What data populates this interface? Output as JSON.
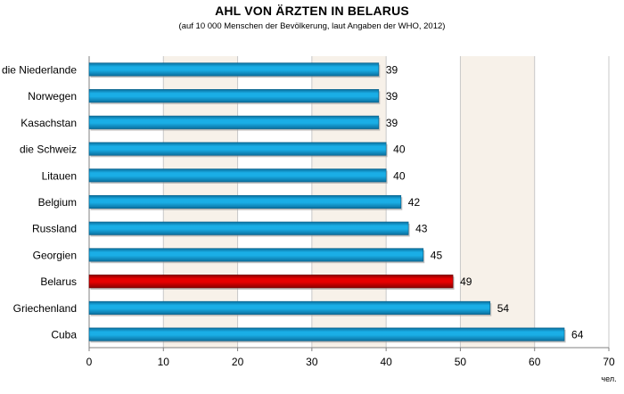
{
  "chart_data": {
    "type": "bar",
    "orientation": "horizontal",
    "title": "AHL VON ÄRZTEN IN BELARUS",
    "subtitle": "(auf 10 000 Menschen der Bevölkerung, laut Angaben der WHO, 2012)",
    "categories": [
      "die Niederlande",
      "Norwegen",
      "Kasachstan",
      "die Schweiz",
      "Litauen",
      "Belgium",
      "Russland",
      "Georgien",
      "Belarus",
      "Griechenland",
      "Cuba"
    ],
    "values": [
      39,
      39,
      39,
      40,
      40,
      42,
      43,
      45,
      49,
      54,
      64
    ],
    "highlight": "Belarus",
    "xlim": [
      0,
      70
    ],
    "xticks": [
      0,
      10,
      20,
      30,
      40,
      50,
      60,
      70
    ],
    "xlabel": "",
    "unit_label": "чел.",
    "grid": true,
    "colors": {
      "bar": "#1aaee6",
      "bar_dark": "#0a6f9e",
      "highlight": "#e60000",
      "highlight_dark": "#8a0000",
      "band": "#f7f1e9",
      "grid": "#c8c8c8"
    }
  }
}
